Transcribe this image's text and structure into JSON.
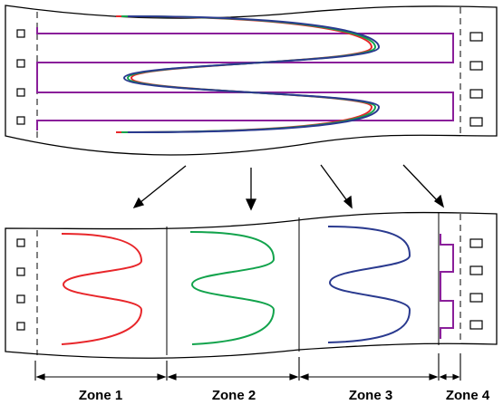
{
  "colors": {
    "outline": "#000000",
    "red": "#e8262a",
    "green": "#12a34c",
    "blue": "#2a3a8f",
    "purple": "#8a1f9a"
  },
  "zones": [
    {
      "label": "Zone 1",
      "color": "red",
      "icon": "red-wave"
    },
    {
      "label": "Zone 2",
      "color": "green",
      "icon": "green-wave"
    },
    {
      "label": "Zone 3",
      "color": "blue",
      "icon": "blue-wave"
    },
    {
      "label": "Zone 4",
      "color": "purple",
      "icon": "purple-pulse"
    }
  ]
}
